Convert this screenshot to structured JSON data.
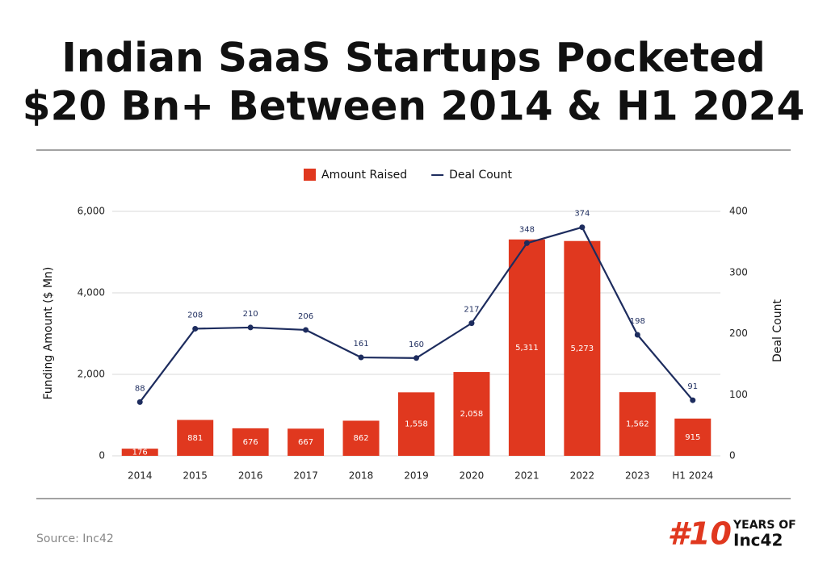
{
  "chart_data": {
    "type": "bar",
    "title": [
      "Indian SaaS Startups Pocketed",
      "$20 Bn+ Between 2014 & H1 2024"
    ],
    "categories": [
      "2014",
      "2015",
      "2016",
      "2017",
      "2018",
      "2019",
      "2020",
      "2021",
      "2022",
      "2023",
      "H1 2024"
    ],
    "series": [
      {
        "name": "Amount Raised",
        "type": "bar",
        "color": "#e0381f",
        "values": [
          176,
          881,
          676,
          667,
          862,
          1558,
          2058,
          5311,
          5273,
          1562,
          915
        ],
        "value_labels": [
          "176",
          "881",
          "676",
          "667",
          "862",
          "1,558",
          "2,058",
          "5,311",
          "5,273",
          "1,562",
          "915"
        ]
      },
      {
        "name": "Deal Count",
        "type": "line",
        "axis": "y2",
        "color": "#1d2c5e",
        "values": [
          88,
          208,
          210,
          206,
          161,
          160,
          217,
          348,
          374,
          198,
          91
        ]
      }
    ],
    "ylabel": "Funding Amount ($ Mn)",
    "y2label": "Deal Count",
    "ylim": [
      0,
      6000
    ],
    "yticks": [
      0,
      {
        "value": 2000,
        "label": "2,000"
      },
      {
        "value": 4000,
        "label": "4,000"
      },
      {
        "value": 6000,
        "label": "6,000"
      }
    ],
    "y2lim": [
      0,
      400
    ],
    "y2ticks": [
      0,
      100,
      200,
      300,
      400
    ],
    "grid": true,
    "legend": "top"
  },
  "footer": {
    "source": "Source: Inc42",
    "logo": {
      "number": "#10",
      "years": "YEARS OF",
      "brand": "Inc42"
    }
  }
}
